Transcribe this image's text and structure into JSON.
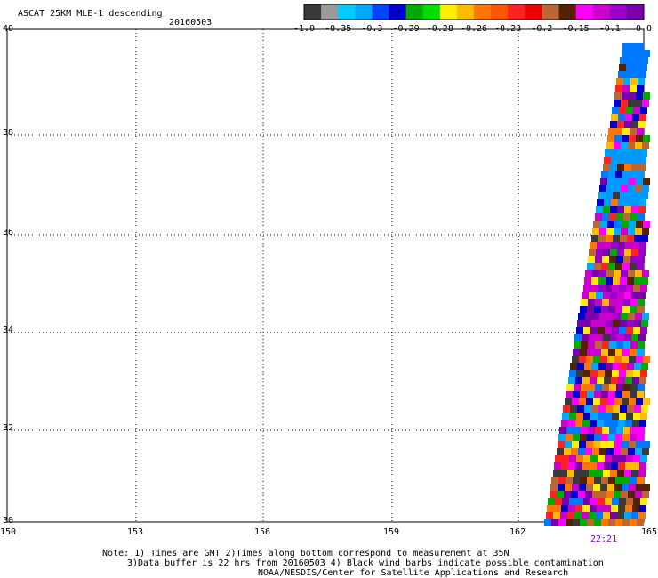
{
  "header": {
    "title": "ASCAT 25KM MLE-1 descending",
    "date": "20160503"
  },
  "colorbar": {
    "colors": [
      "#3a3a3a",
      "#9a9a9a",
      "#00ccff",
      "#00aaff",
      "#0044ff",
      "#0000cc",
      "#00aa00",
      "#00dd00",
      "#ffee00",
      "#ffbb00",
      "#ff7700",
      "#ff5500",
      "#ff2222",
      "#ee0000",
      "#bb6633",
      "#552200",
      "#ff00ff",
      "#cc00cc",
      "#9900cc",
      "#7a00aa"
    ],
    "labels": [
      "-1.0",
      "-0.35",
      "-0.3",
      "-0.29",
      "-0.28",
      "-0.26",
      "-0.23",
      "-0.2",
      "-0.15",
      "-0.1",
      "0.0"
    ]
  },
  "axes": {
    "lat_labels": [
      "40",
      "38",
      "36",
      "34",
      "32",
      "30"
    ],
    "lon_labels": [
      "150",
      "153",
      "156",
      "159",
      "162",
      "165"
    ]
  },
  "swath": {
    "time_label": "22:21"
  },
  "notes": {
    "line1": "Note: 1) Times are GMT 2)Times along bottom correspond to measurement at 35N",
    "line2": "3)Data buffer is 22 hrs from 20160503 4) Black wind barbs indicate possible contamination",
    "line3": "NOAA/NESDIS/Center for Satellite Applications and Research"
  }
}
